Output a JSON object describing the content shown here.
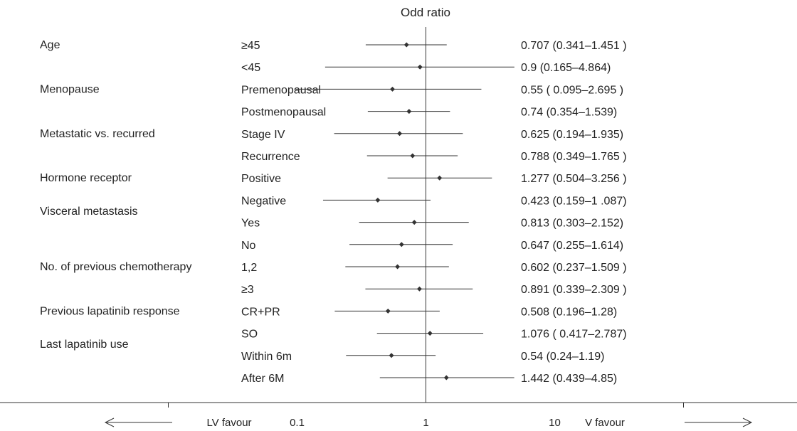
{
  "chart_data": {
    "type": "forest",
    "title": "Odd ratio",
    "x_scale": "log",
    "xlim": [
      0.01,
      100
    ],
    "reference_value": 1,
    "tick_labels": [
      "0.1",
      "1",
      "10"
    ],
    "tick_values": [
      0.1,
      1,
      10
    ],
    "favour_left": "LV favour",
    "favour_right": "V favour",
    "groups": [
      {
        "label": "Age",
        "first_row": 0,
        "last_row": 0
      },
      {
        "label": "Menopause",
        "first_row": 2,
        "last_row": 2
      },
      {
        "label": "Metastatic vs. recurred",
        "first_row": 4,
        "last_row": 4
      },
      {
        "label": "Hormone receptor",
        "first_row": 6,
        "last_row": 6
      },
      {
        "label": "Visceral metastasis",
        "first_row": 7,
        "last_row": 8
      },
      {
        "label": "No. of previous chemotherapy",
        "first_row": 10,
        "last_row": 10
      },
      {
        "label": "Previous lapatinib response",
        "first_row": 12,
        "last_row": 12
      },
      {
        "label": "Last lapatinib use",
        "first_row": 13,
        "last_row": 14
      }
    ],
    "rows": [
      {
        "subgroup": "≥45",
        "or": 0.707,
        "lower": 0.341,
        "upper": 1.451,
        "ci_text": "0.707 (0.341–1.451 )"
      },
      {
        "subgroup": "<45",
        "or": 0.9,
        "lower": 0.165,
        "upper": 4.864,
        "ci_text": "0.9 (0.165–4.864)"
      },
      {
        "subgroup": "Premenopausal",
        "or": 0.55,
        "lower": 0.095,
        "upper": 2.695,
        "ci_text": "0.55 ( 0.095–2.695 )"
      },
      {
        "subgroup": "Postmenopausal",
        "or": 0.74,
        "lower": 0.354,
        "upper": 1.539,
        "ci_text": "0.74 (0.354–1.539)"
      },
      {
        "subgroup": "Stage IV",
        "or": 0.625,
        "lower": 0.194,
        "upper": 1.935,
        "ci_text": "0.625 (0.194–1.935)"
      },
      {
        "subgroup": "Recurrence",
        "or": 0.788,
        "lower": 0.349,
        "upper": 1.765,
        "ci_text": "0.788 (0.349–1.765 )"
      },
      {
        "subgroup": "Positive",
        "or": 1.277,
        "lower": 0.504,
        "upper": 3.256,
        "ci_text": "1.277 (0.504–3.256 )"
      },
      {
        "subgroup": "Negative",
        "or": 0.423,
        "lower": 0.159,
        "upper": 1.087,
        "ci_text": "0.423 (0.159–1 .087)"
      },
      {
        "subgroup": "Yes",
        "or": 0.813,
        "lower": 0.303,
        "upper": 2.152,
        "ci_text": "0.813 (0.303–2.152)"
      },
      {
        "subgroup": "No",
        "or": 0.647,
        "lower": 0.255,
        "upper": 1.614,
        "ci_text": "0.647 (0.255–1.614)"
      },
      {
        "subgroup": "1,2",
        "or": 0.602,
        "lower": 0.237,
        "upper": 1.509,
        "ci_text": "0.602 (0.237–1.509 )"
      },
      {
        "subgroup": "≥3",
        "or": 0.891,
        "lower": 0.339,
        "upper": 2.309,
        "ci_text": "0.891 (0.339–2.309 )"
      },
      {
        "subgroup": "CR+PR",
        "or": 0.508,
        "lower": 0.196,
        "upper": 1.28,
        "ci_text": "0.508 (0.196–1.28)"
      },
      {
        "subgroup": "SO",
        "or": 1.076,
        "lower": 0.417,
        "upper": 2.787,
        "ci_text": "1.076 ( 0.417–2.787)"
      },
      {
        "subgroup": "Within 6m",
        "or": 0.54,
        "lower": 0.24,
        "upper": 1.19,
        "ci_text": "0.54 (0.24–1.19)"
      },
      {
        "subgroup": "After 6M",
        "or": 1.442,
        "lower": 0.439,
        "upper": 4.85,
        "ci_text": "1.442 (0.439–4.85)"
      }
    ]
  }
}
